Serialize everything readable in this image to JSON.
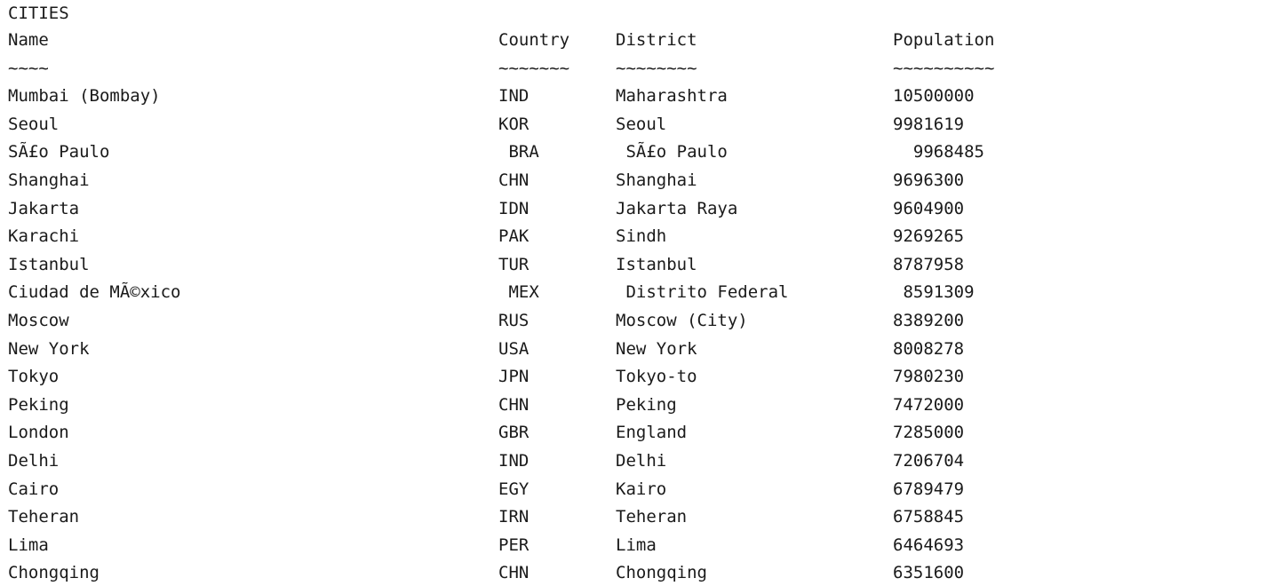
{
  "title": "CITIES",
  "headers": {
    "name": "Name",
    "country": "Country",
    "district": "District",
    "population": "Population"
  },
  "separators": {
    "name": "~~~~",
    "country": "~~~~~~~",
    "district": "~~~~~~~~",
    "population": "~~~~~~~~~~"
  },
  "rows": [
    {
      "name": "Mumbai (Bombay)",
      "country": "IND",
      "district": "Maharashtra",
      "population": "10500000"
    },
    {
      "name": "Seoul",
      "country": "KOR",
      "district": "Seoul",
      "population": "9981619"
    },
    {
      "name": "SÃ£o Paulo",
      "country": " BRA",
      "district": " SÃ£o Paulo",
      "population": "  9968485"
    },
    {
      "name": "Shanghai",
      "country": "CHN",
      "district": "Shanghai",
      "population": "9696300"
    },
    {
      "name": "Jakarta",
      "country": "IDN",
      "district": "Jakarta Raya",
      "population": "9604900"
    },
    {
      "name": "Karachi",
      "country": "PAK",
      "district": "Sindh",
      "population": "9269265"
    },
    {
      "name": "Istanbul",
      "country": "TUR",
      "district": "Istanbul",
      "population": "8787958"
    },
    {
      "name": "Ciudad de MÃ©xico",
      "country": " MEX",
      "district": " Distrito Federal",
      "population": " 8591309"
    },
    {
      "name": "Moscow",
      "country": "RUS",
      "district": "Moscow (City)",
      "population": "8389200"
    },
    {
      "name": "New York",
      "country": "USA",
      "district": "New York",
      "population": "8008278"
    },
    {
      "name": "Tokyo",
      "country": "JPN",
      "district": "Tokyo-to",
      "population": "7980230"
    },
    {
      "name": "Peking",
      "country": "CHN",
      "district": "Peking",
      "population": "7472000"
    },
    {
      "name": "London",
      "country": "GBR",
      "district": "England",
      "population": "7285000"
    },
    {
      "name": "Delhi",
      "country": "IND",
      "district": "Delhi",
      "population": "7206704"
    },
    {
      "name": "Cairo",
      "country": "EGY",
      "district": "Kairo",
      "population": "6789479"
    },
    {
      "name": "Teheran",
      "country": "IRN",
      "district": "Teheran",
      "population": "6758845"
    },
    {
      "name": "Lima",
      "country": "PER",
      "district": "Lima",
      "population": "6464693"
    },
    {
      "name": "Chongqing",
      "country": "CHN",
      "district": "Chongqing",
      "population": "6351600"
    }
  ]
}
